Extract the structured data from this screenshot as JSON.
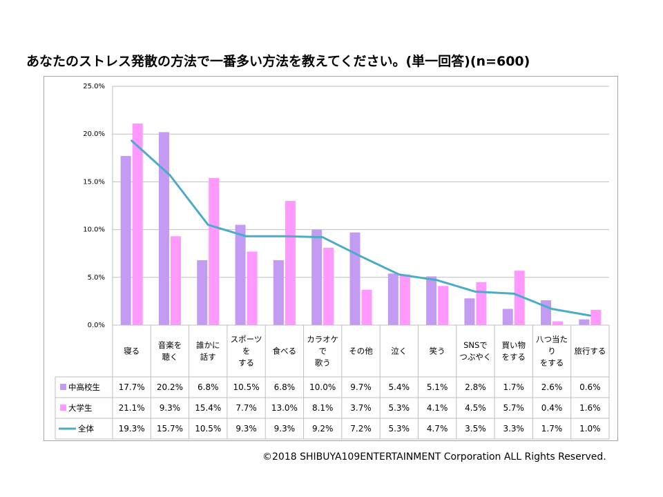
{
  "title": "あなたのストレス発散の方法で一番多い方法を教えてください。(単一回答)(n=600)",
  "copyright": "©2018  SHIBUYA109ENTERTAINMENT Corporation   ALL Rights Reserved.",
  "colors": {
    "series1": "#c39bf2",
    "series2": "#ff99ff",
    "line": "#4aacc6",
    "grid": "#bfbfbf"
  },
  "chart_data": {
    "type": "bar",
    "categories": [
      [
        "寝る"
      ],
      [
        "音楽を",
        "聴く"
      ],
      [
        "誰かに",
        "話す"
      ],
      [
        "スポーツ",
        "を",
        "する"
      ],
      [
        "食べる"
      ],
      [
        "カラオケ",
        "で",
        "歌う"
      ],
      [
        "その他"
      ],
      [
        "泣く"
      ],
      [
        "笑う"
      ],
      [
        "SNSで",
        "つぶやく"
      ],
      [
        "買い物",
        "をする"
      ],
      [
        "八つ当た",
        "り",
        "をする"
      ],
      [
        "旅行する"
      ]
    ],
    "series": [
      {
        "name": "中高校生",
        "kind": "bar",
        "values": [
          17.7,
          20.2,
          6.8,
          10.5,
          6.8,
          10.0,
          9.7,
          5.4,
          5.1,
          2.8,
          1.7,
          2.6,
          0.6
        ]
      },
      {
        "name": "大学生",
        "kind": "bar",
        "values": [
          21.1,
          9.3,
          15.4,
          7.7,
          13.0,
          8.1,
          3.7,
          5.3,
          4.1,
          4.5,
          5.7,
          0.4,
          1.6
        ]
      },
      {
        "name": "全体",
        "kind": "line",
        "values": [
          19.3,
          15.7,
          10.5,
          9.3,
          9.3,
          9.2,
          7.2,
          5.3,
          4.7,
          3.5,
          3.3,
          1.7,
          1.0
        ]
      }
    ],
    "ylim": [
      0,
      25
    ],
    "yticks": [
      "0.0%",
      "5.0%",
      "10.0%",
      "15.0%",
      "20.0%",
      "25.0%"
    ],
    "ytick_values": [
      0,
      5,
      10,
      15,
      20,
      25
    ],
    "value_suffix": "%",
    "grid": true,
    "legend": "data-table"
  }
}
